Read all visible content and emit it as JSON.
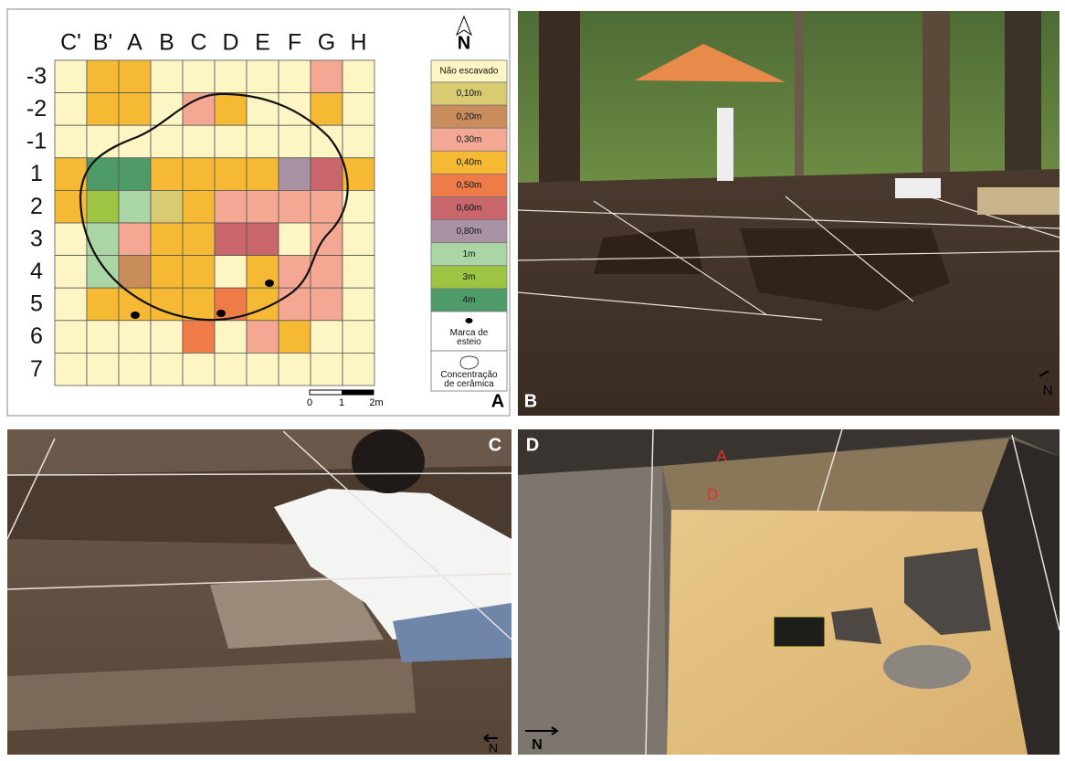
{
  "panel_a": {
    "label": "A",
    "north": "N",
    "columns": [
      "C'",
      "B'",
      "A",
      "B",
      "C",
      "D",
      "E",
      "F",
      "G",
      "H"
    ],
    "rows": [
      "-3",
      "-2",
      "-1",
      "1",
      "2",
      "3",
      "4",
      "5",
      "6",
      "7"
    ],
    "legend": [
      {
        "label": "Não escavado",
        "color": "#fdf5c4"
      },
      {
        "label": "0,10m",
        "color": "#d8cb72"
      },
      {
        "label": "0,20m",
        "color": "#c98d5c"
      },
      {
        "label": "0,30m",
        "color": "#f4a893"
      },
      {
        "label": "0,40m",
        "color": "#f6b934"
      },
      {
        "label": "0,50m",
        "color": "#ee7b48"
      },
      {
        "label": "0,60m",
        "color": "#c8666c"
      },
      {
        "label": "0,80m",
        "color": "#a992a4"
      },
      {
        "label": "1m",
        "color": "#a9d6a4"
      },
      {
        "label": "3m",
        "color": "#9dc443"
      },
      {
        "label": "4m",
        "color": "#4f9a69"
      }
    ],
    "marker_label": "Marca de esteio",
    "outline_label": "Concentração de cerâmica",
    "cells": [
      [
        0,
        4,
        4,
        0,
        0,
        0,
        0,
        0,
        3,
        0
      ],
      [
        0,
        4,
        4,
        0,
        3,
        4,
        0,
        0,
        4,
        0
      ],
      [
        0,
        0,
        0,
        0,
        0,
        0,
        0,
        0,
        0,
        0
      ],
      [
        4,
        10,
        10,
        4,
        4,
        4,
        4,
        7,
        6,
        4
      ],
      [
        4,
        9,
        8,
        1,
        4,
        3,
        3,
        3,
        3,
        0
      ],
      [
        0,
        8,
        3,
        4,
        4,
        6,
        6,
        0,
        3,
        0
      ],
      [
        0,
        8,
        2,
        4,
        4,
        0,
        4,
        3,
        3,
        0
      ],
      [
        0,
        4,
        4,
        4,
        4,
        5,
        4,
        3,
        3,
        0
      ],
      [
        0,
        0,
        0,
        0,
        5,
        0,
        3,
        4,
        0,
        0
      ],
      [
        0,
        0,
        0,
        0,
        0,
        0,
        0,
        0,
        0,
        0
      ]
    ],
    "scale": [
      "0",
      "1",
      "2m"
    ]
  },
  "panel_b": {
    "label": "B",
    "north": "N"
  },
  "panel_c": {
    "label": "C",
    "north": "N"
  },
  "panel_d": {
    "label": "D",
    "north": "N",
    "layer_labels": [
      "A",
      "D"
    ]
  }
}
